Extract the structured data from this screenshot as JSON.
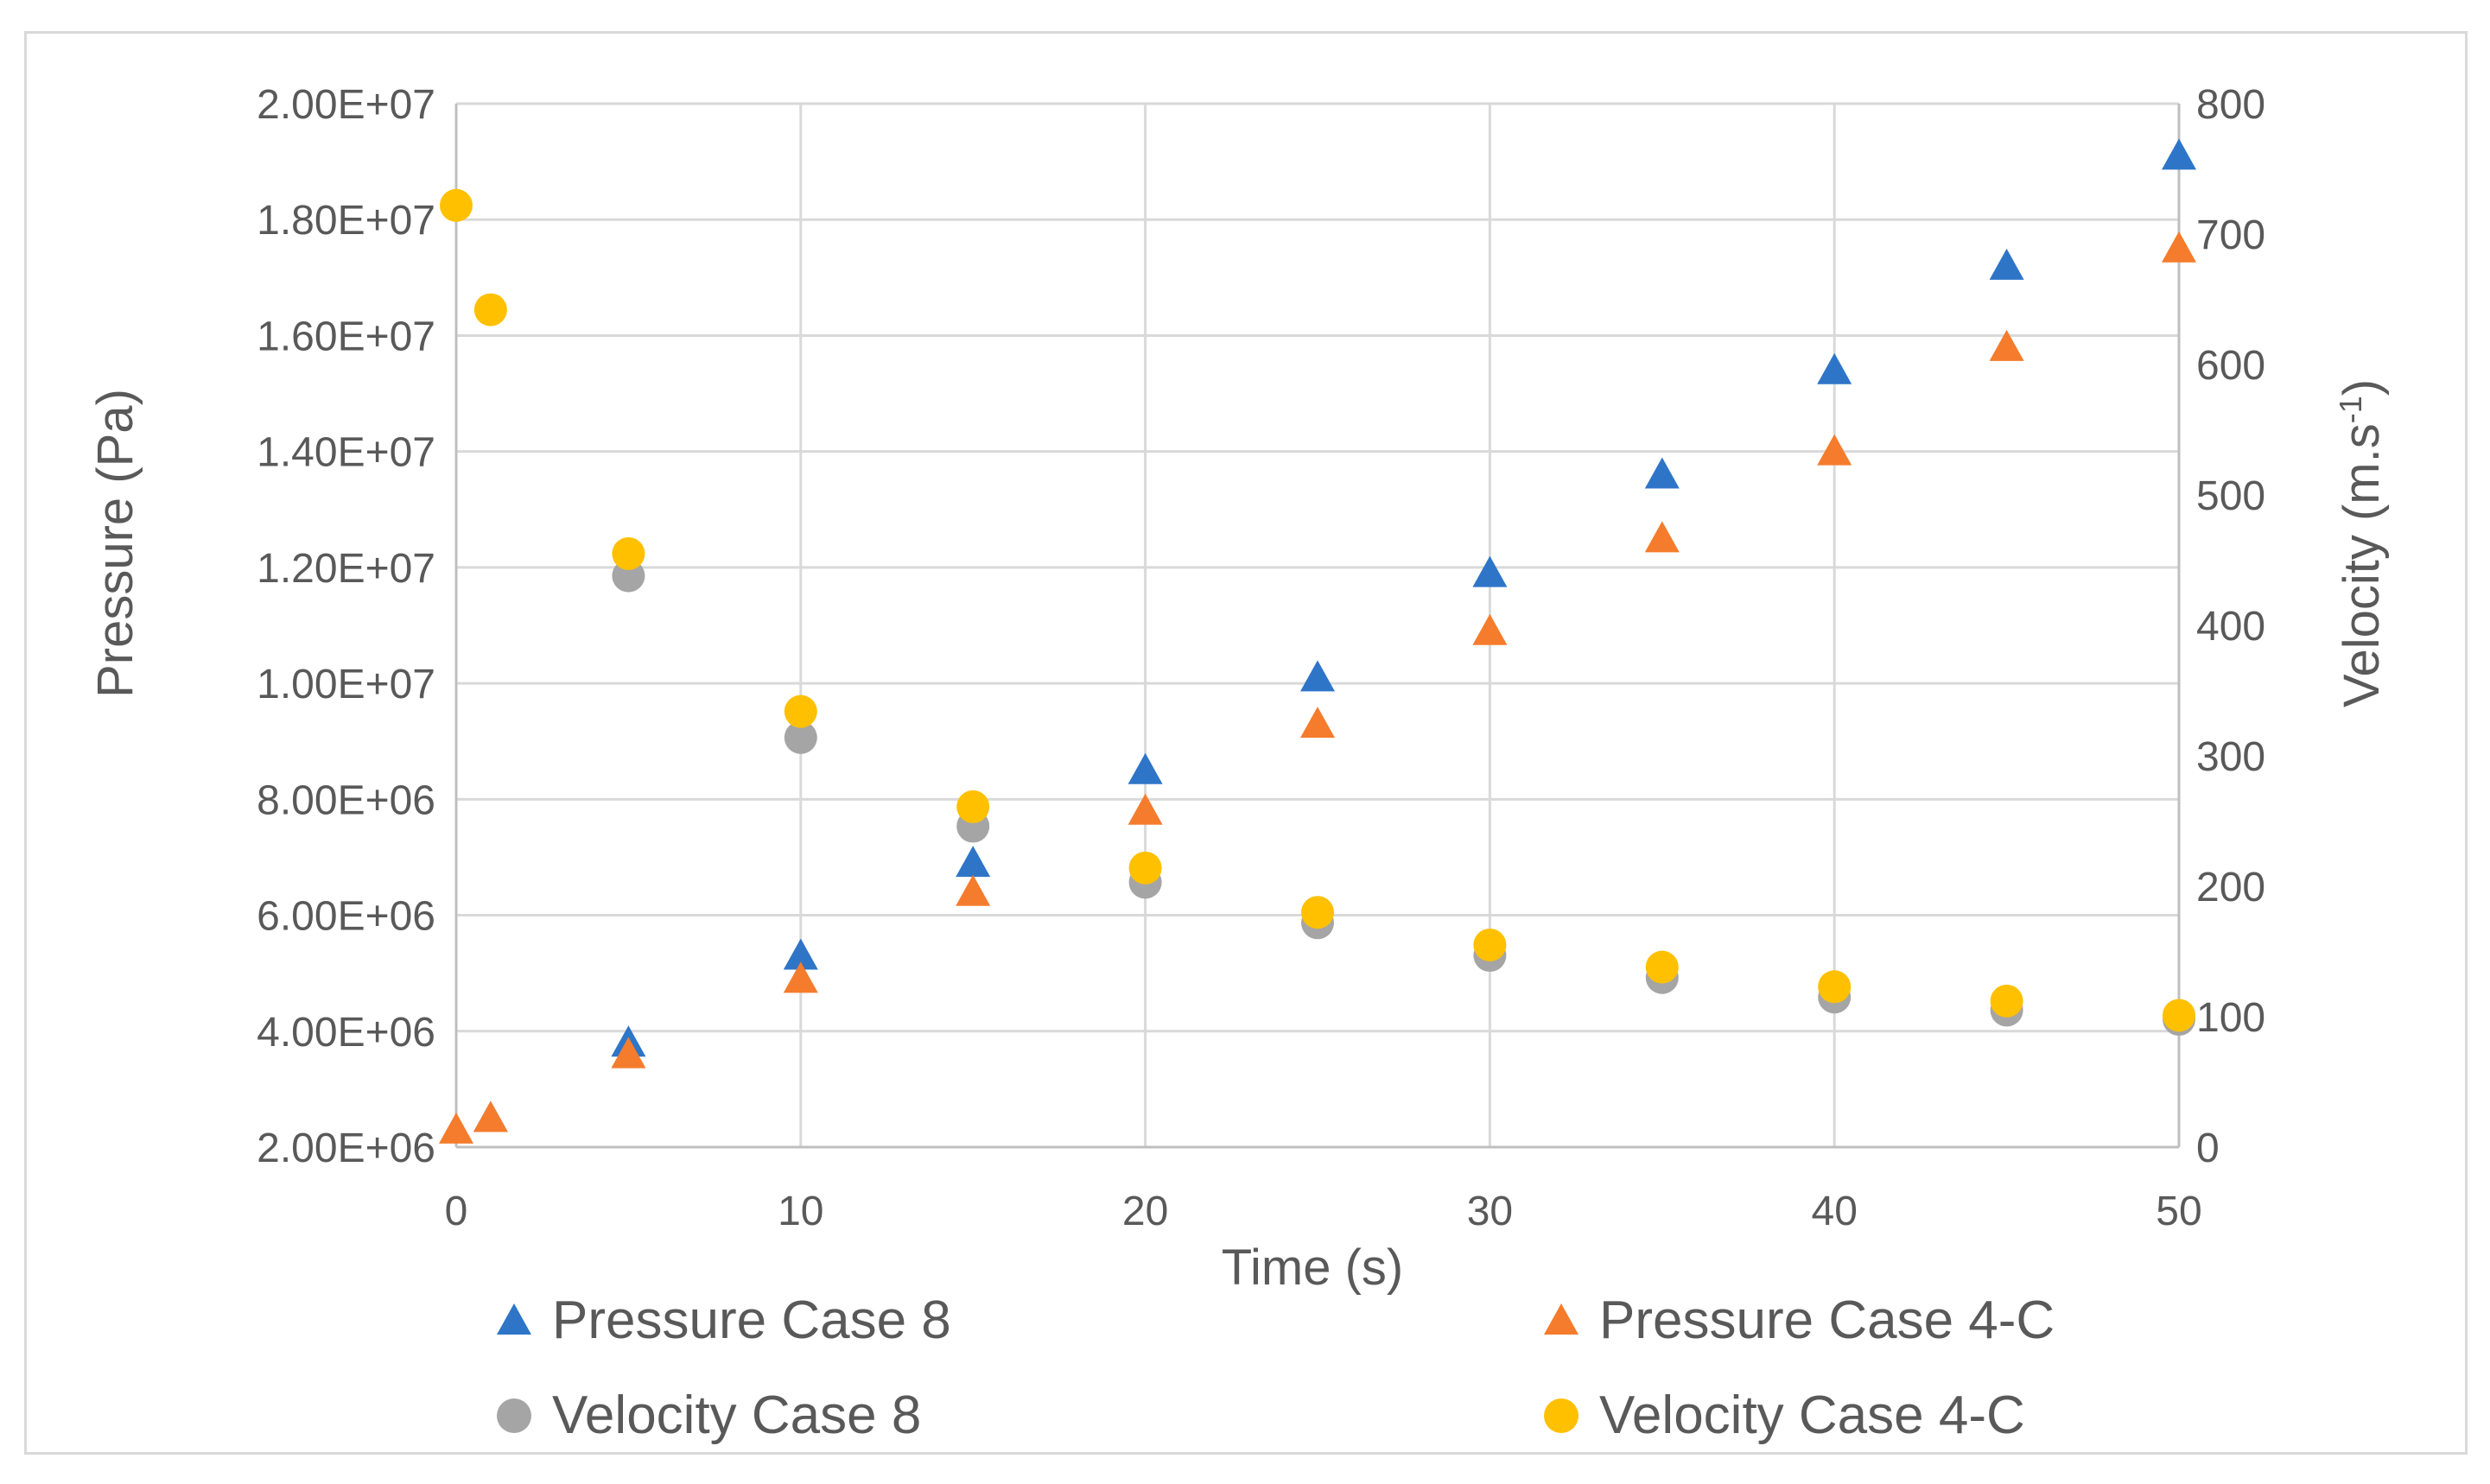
{
  "chart_data": {
    "type": "scatter",
    "title": "",
    "xlabel": "Time (s)",
    "ylabel": "Pressure (Pa)",
    "y2label_main": "Velocity (m.s",
    "y2label_sup": "-1",
    "y2label_end": ")",
    "xlim": [
      0,
      50
    ],
    "ylim": [
      2000000,
      20000000
    ],
    "y2lim": [
      0,
      800
    ],
    "xticks": [
      "0",
      "10",
      "20",
      "30",
      "40",
      "50"
    ],
    "yticks": [
      "2.00E+06",
      "4.00E+06",
      "6.00E+06",
      "8.00E+06",
      "1.00E+07",
      "1.20E+07",
      "1.40E+07",
      "1.60E+07",
      "1.80E+07",
      "2.00E+07"
    ],
    "y2ticks": [
      "0",
      "100",
      "200",
      "300",
      "400",
      "500",
      "600",
      "700",
      "800"
    ],
    "grid": true,
    "legend_position": "bottom",
    "series": [
      {
        "name": "Pressure Case 8",
        "axis": "left",
        "marker": "triangle",
        "color": "#2e75c8",
        "x": [
          1,
          5,
          10,
          15,
          20,
          25,
          30,
          35,
          40,
          45,
          50
        ],
        "y": [
          2500000,
          3800000,
          5300000,
          6900000,
          8500000,
          10100000,
          11900000,
          13600000,
          15400000,
          17200000,
          19100000
        ]
      },
      {
        "name": "Pressure Case 4-C",
        "axis": "left",
        "marker": "triangle",
        "color": "#f57c2c",
        "x": [
          0,
          1,
          5,
          10,
          15,
          20,
          25,
          30,
          35,
          40,
          45,
          50
        ],
        "y": [
          2300000,
          2500000,
          3600000,
          4900000,
          6400000,
          7800000,
          9300000,
          10900000,
          12500000,
          14000000,
          15800000,
          17500000
        ]
      },
      {
        "name": "Velocity Case 8",
        "axis": "right",
        "marker": "circle",
        "color": "#a5a5a5",
        "x": [
          5,
          10,
          15,
          20,
          25,
          30,
          35,
          40,
          45,
          50
        ],
        "y": [
          438,
          314,
          246,
          203,
          172,
          147,
          130,
          115,
          105,
          98
        ]
      },
      {
        "name": "Velocity Case 4-C",
        "axis": "right",
        "marker": "circle",
        "color": "#ffc000",
        "x": [
          0,
          1,
          5,
          10,
          15,
          20,
          25,
          30,
          35,
          40,
          45,
          50
        ],
        "y": [
          722,
          642,
          455,
          334,
          261,
          214,
          180,
          155,
          138,
          123,
          112,
          101
        ]
      }
    ]
  }
}
